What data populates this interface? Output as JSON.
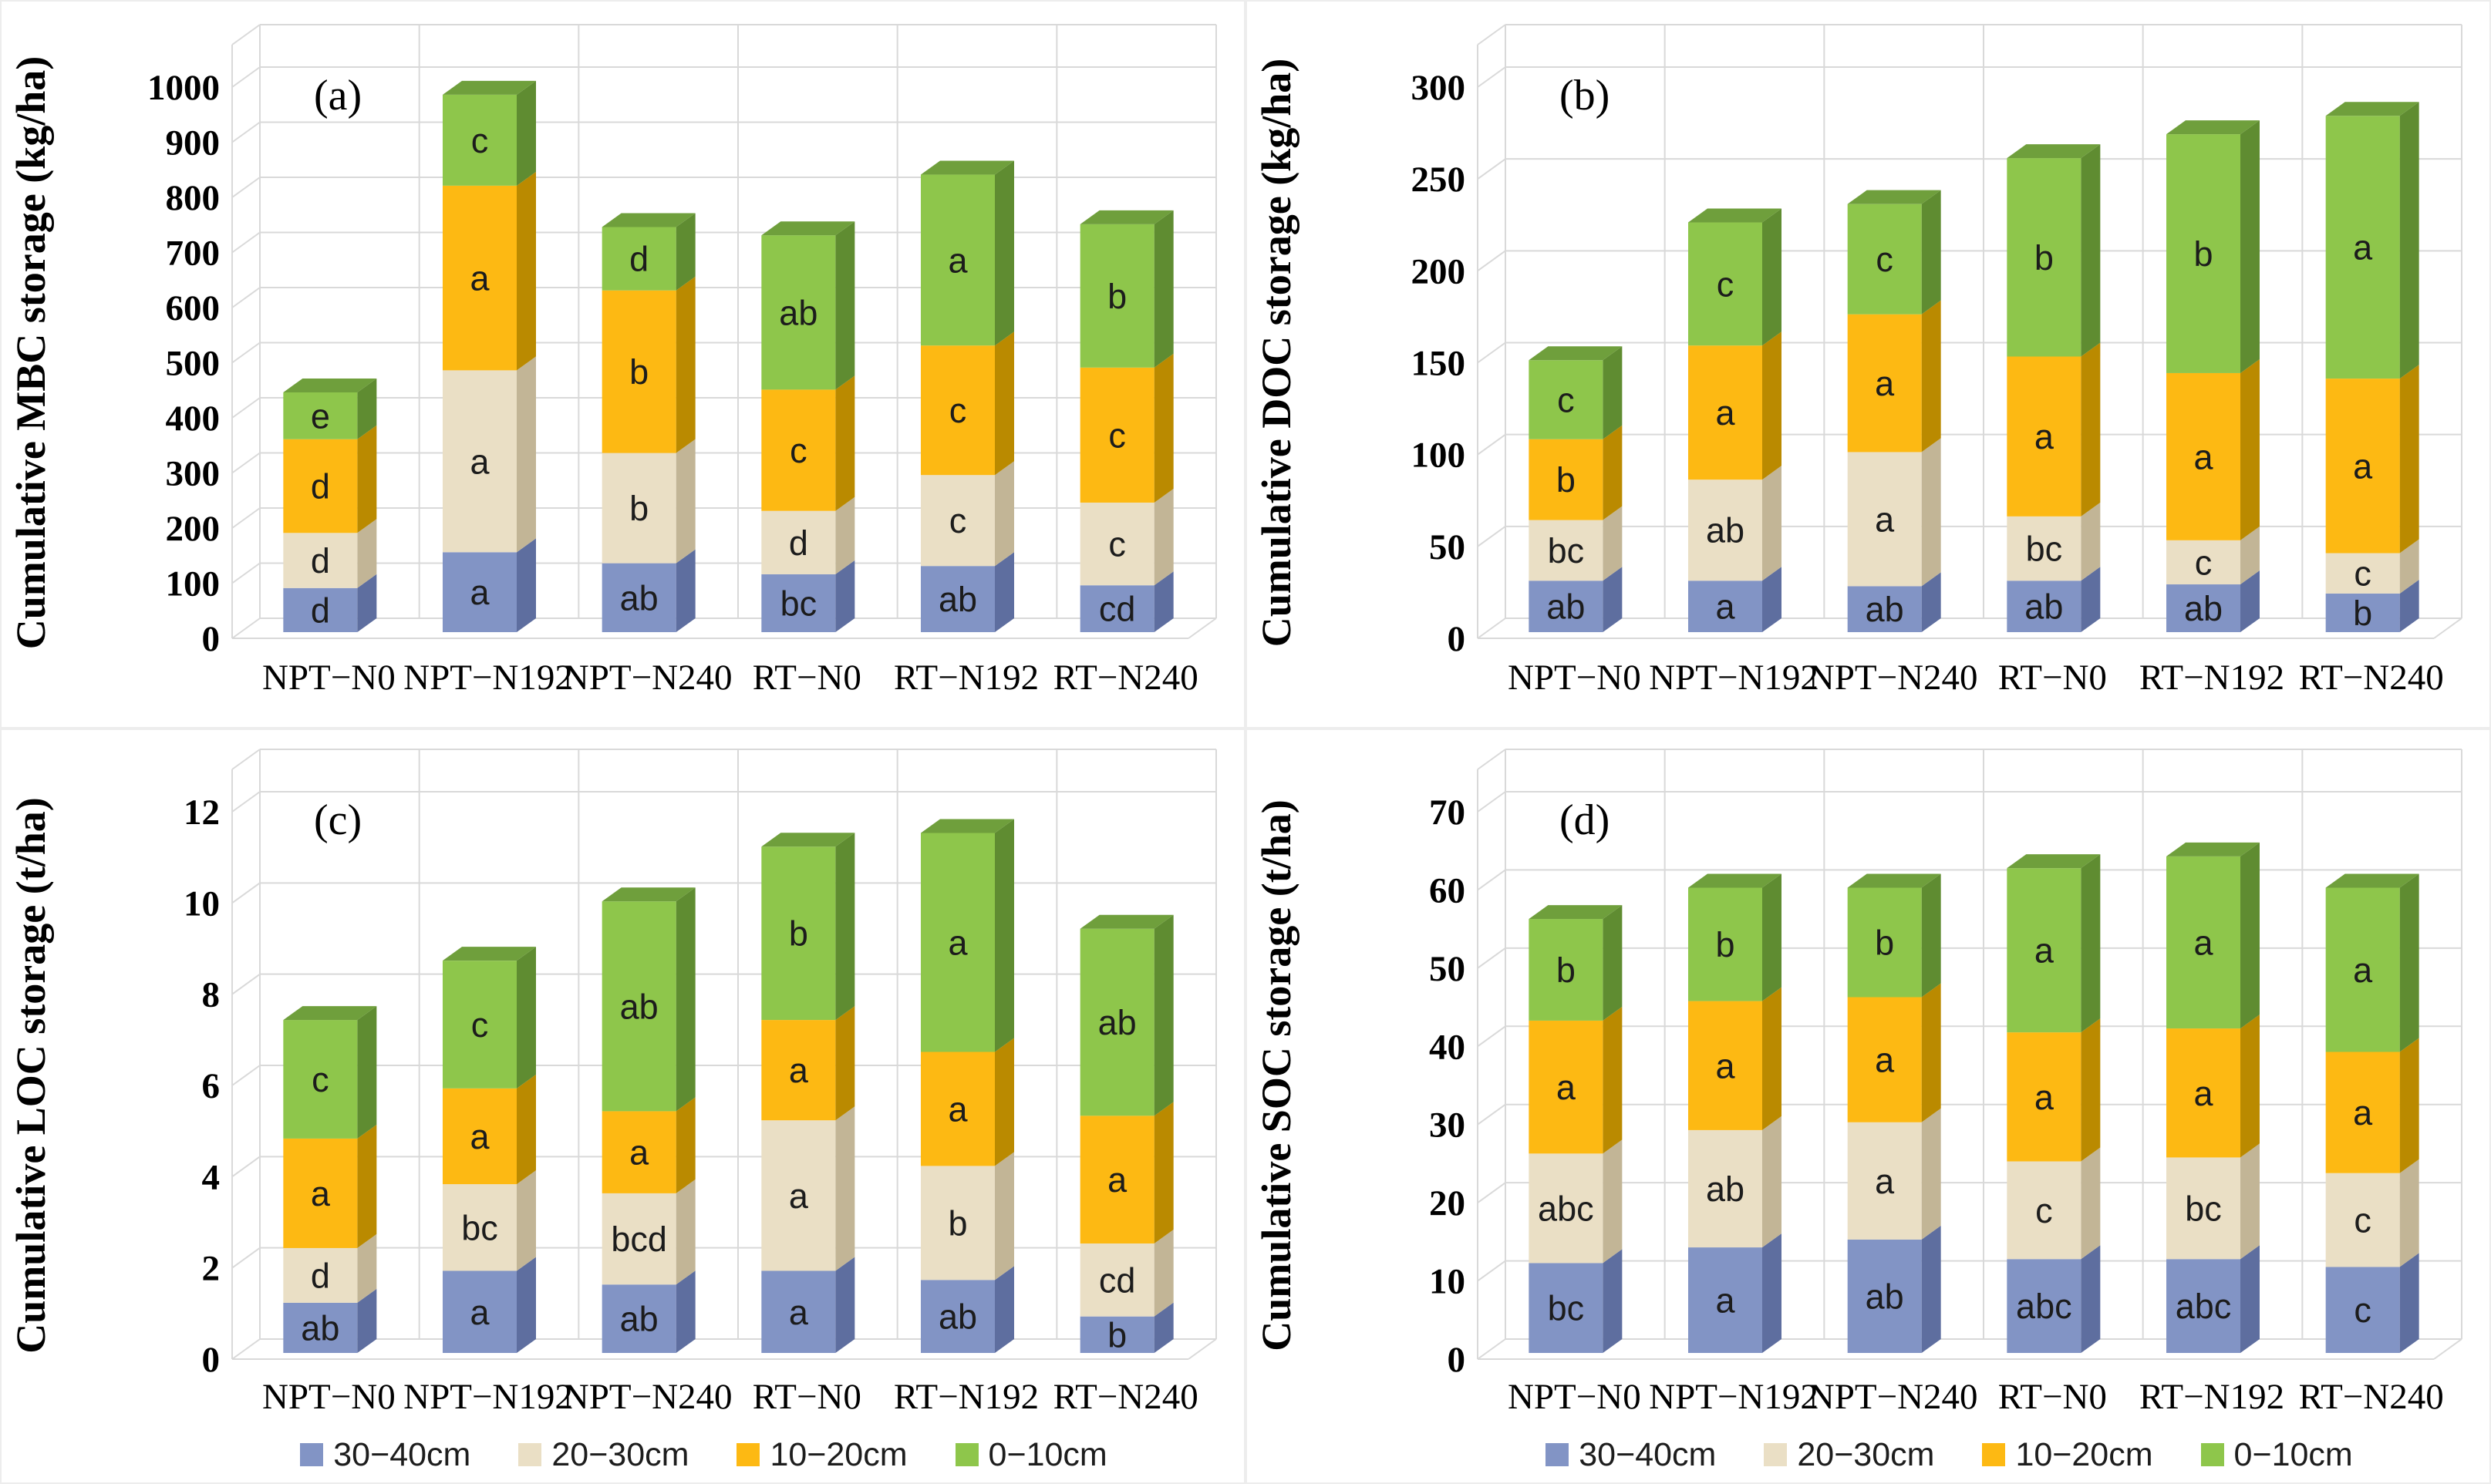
{
  "colors": {
    "background": "#ffffff",
    "grid": "#d9d9d9",
    "panel_border": "#ededed",
    "axis_text": "#000000",
    "letter_text": "#1c1c1c"
  },
  "series_styles": [
    {
      "name": "30−40cm",
      "front": "#8294c5",
      "side": "#5e6e9f",
      "top": "#6d7dae"
    },
    {
      "name": "20−30cm",
      "front": "#eadfc5",
      "side": "#c2b596",
      "top": "#d3c7a9"
    },
    {
      "name": "10−20cm",
      "front": "#fdb913",
      "side": "#ba8a00",
      "top": "#d39e00"
    },
    {
      "name": "0−10cm",
      "front": "#8ec64b",
      "side": "#5f8c31",
      "top": "#6f9f3c"
    }
  ],
  "legend": {
    "items": [
      {
        "label": "30−40cm",
        "color": "#8294c5"
      },
      {
        "label": "20−30cm",
        "color": "#eadfc5"
      },
      {
        "label": "10−20cm",
        "color": "#fdb913"
      },
      {
        "label": "0−10cm",
        "color": "#8ec64b"
      }
    ]
  },
  "categories": [
    "NPT−N0",
    "NPT−N192",
    "NPT−N240",
    "RT−N0",
    "RT−N192",
    "RT−N240"
  ],
  "chart_data": [
    {
      "type": "bar",
      "stacked": true,
      "panel_label": "(a)",
      "ylabel": "Cumulative MBC storage (kg/ha)",
      "ylim": [
        0,
        1000
      ],
      "ytick_step": 100,
      "yticks": [
        0,
        100,
        200,
        300,
        400,
        500,
        600,
        700,
        800,
        900,
        1000
      ],
      "legend_shown": false,
      "categories": [
        "NPT−N0",
        "NPT−N192",
        "NPT−N240",
        "RT−N0",
        "RT−N192",
        "RT−N240"
      ],
      "series": [
        {
          "name": "30−40cm",
          "values": [
            80,
            145,
            125,
            105,
            120,
            85
          ],
          "letters": [
            "d",
            "a",
            "ab",
            "bc",
            "ab",
            "cd"
          ]
        },
        {
          "name": "20−30cm",
          "values": [
            100,
            330,
            200,
            115,
            165,
            150
          ],
          "letters": [
            "d",
            "a",
            "b",
            "d",
            "c",
            "c"
          ]
        },
        {
          "name": "10−20cm",
          "values": [
            170,
            335,
            295,
            220,
            235,
            245
          ],
          "letters": [
            "d",
            "a",
            "b",
            "c",
            "c",
            "c"
          ]
        },
        {
          "name": "0−10cm",
          "values": [
            85,
            165,
            115,
            280,
            310,
            260
          ],
          "letters": [
            "e",
            "c",
            "d",
            "ab",
            "a",
            "b"
          ]
        }
      ]
    },
    {
      "type": "bar",
      "stacked": true,
      "panel_label": "(b)",
      "ylabel": "Cumulative DOC storage (kg/ha)",
      "ylim": [
        0,
        300
      ],
      "ytick_step": 50,
      "yticks": [
        0,
        50,
        100,
        150,
        200,
        250,
        300
      ],
      "legend_shown": false,
      "categories": [
        "NPT−N0",
        "NPT−N192",
        "NPT−N240",
        "RT−N0",
        "RT−N192",
        "RT−N240"
      ],
      "series": [
        {
          "name": "30−40cm",
          "values": [
            28,
            28,
            25,
            28,
            26,
            21
          ],
          "letters": [
            "ab",
            "a",
            "ab",
            "ab",
            "ab",
            "b"
          ]
        },
        {
          "name": "20−30cm",
          "values": [
            33,
            55,
            73,
            35,
            24,
            22
          ],
          "letters": [
            "bc",
            "ab",
            "a",
            "bc",
            "c",
            "c"
          ]
        },
        {
          "name": "10−20cm",
          "values": [
            44,
            73,
            75,
            87,
            91,
            95
          ],
          "letters": [
            "b",
            "a",
            "a",
            "a",
            "a",
            "a"
          ]
        },
        {
          "name": "0−10cm",
          "values": [
            43,
            67,
            60,
            108,
            130,
            143
          ],
          "letters": [
            "c",
            "c",
            "c",
            "b",
            "b",
            "a"
          ]
        }
      ]
    },
    {
      "type": "bar",
      "stacked": true,
      "panel_label": "(c)",
      "ylabel": "Cumulative LOC storage (t/ha)",
      "ylim": [
        0,
        12
      ],
      "ytick_step": 2,
      "yticks": [
        0,
        2,
        4,
        6,
        8,
        10,
        12
      ],
      "legend_shown": true,
      "categories": [
        "NPT−N0",
        "NPT−N192",
        "NPT−N240",
        "RT−N0",
        "RT−N192",
        "RT−N240"
      ],
      "series": [
        {
          "name": "30−40cm",
          "values": [
            1.1,
            1.8,
            1.5,
            1.8,
            1.6,
            0.8
          ],
          "letters": [
            "ab",
            "a",
            "ab",
            "a",
            "ab",
            "b"
          ]
        },
        {
          "name": "20−30cm",
          "values": [
            1.2,
            1.9,
            2.0,
            3.3,
            2.5,
            1.6
          ],
          "letters": [
            "d",
            "bc",
            "bcd",
            "a",
            "b",
            "cd"
          ]
        },
        {
          "name": "10−20cm",
          "values": [
            2.4,
            2.1,
            1.8,
            2.2,
            2.5,
            2.8
          ],
          "letters": [
            "a",
            "a",
            "a",
            "a",
            "a",
            "a"
          ]
        },
        {
          "name": "0−10cm",
          "values": [
            2.6,
            2.8,
            4.6,
            3.8,
            4.8,
            4.1
          ],
          "letters": [
            "c",
            "c",
            "ab",
            "b",
            "a",
            "ab"
          ]
        }
      ]
    },
    {
      "type": "bar",
      "stacked": true,
      "panel_label": "(d)",
      "ylabel": "Cumulative SOC storage (t/ha)",
      "ylim": [
        0,
        70
      ],
      "ytick_step": 10,
      "yticks": [
        0,
        10,
        20,
        30,
        40,
        50,
        60,
        70
      ],
      "legend_shown": true,
      "categories": [
        "NPT−N0",
        "NPT−N192",
        "NPT−N240",
        "RT−N0",
        "RT−N192",
        "RT−N240"
      ],
      "series": [
        {
          "name": "30−40cm",
          "values": [
            11.5,
            13.5,
            14.5,
            12,
            12,
            11
          ],
          "letters": [
            "bc",
            "a",
            "ab",
            "abc",
            "abc",
            "c"
          ]
        },
        {
          "name": "20−30cm",
          "values": [
            14,
            15,
            15,
            12.5,
            13,
            12
          ],
          "letters": [
            "abc",
            "ab",
            "a",
            "c",
            "bc",
            "c"
          ]
        },
        {
          "name": "10−20cm",
          "values": [
            17,
            16.5,
            16,
            16.5,
            16.5,
            15.5
          ],
          "letters": [
            "a",
            "a",
            "a",
            "a",
            "a",
            "a"
          ]
        },
        {
          "name": "0−10cm",
          "values": [
            13,
            14.5,
            14,
            21,
            22,
            21
          ],
          "letters": [
            "b",
            "b",
            "b",
            "a",
            "a",
            "a"
          ]
        }
      ]
    }
  ]
}
